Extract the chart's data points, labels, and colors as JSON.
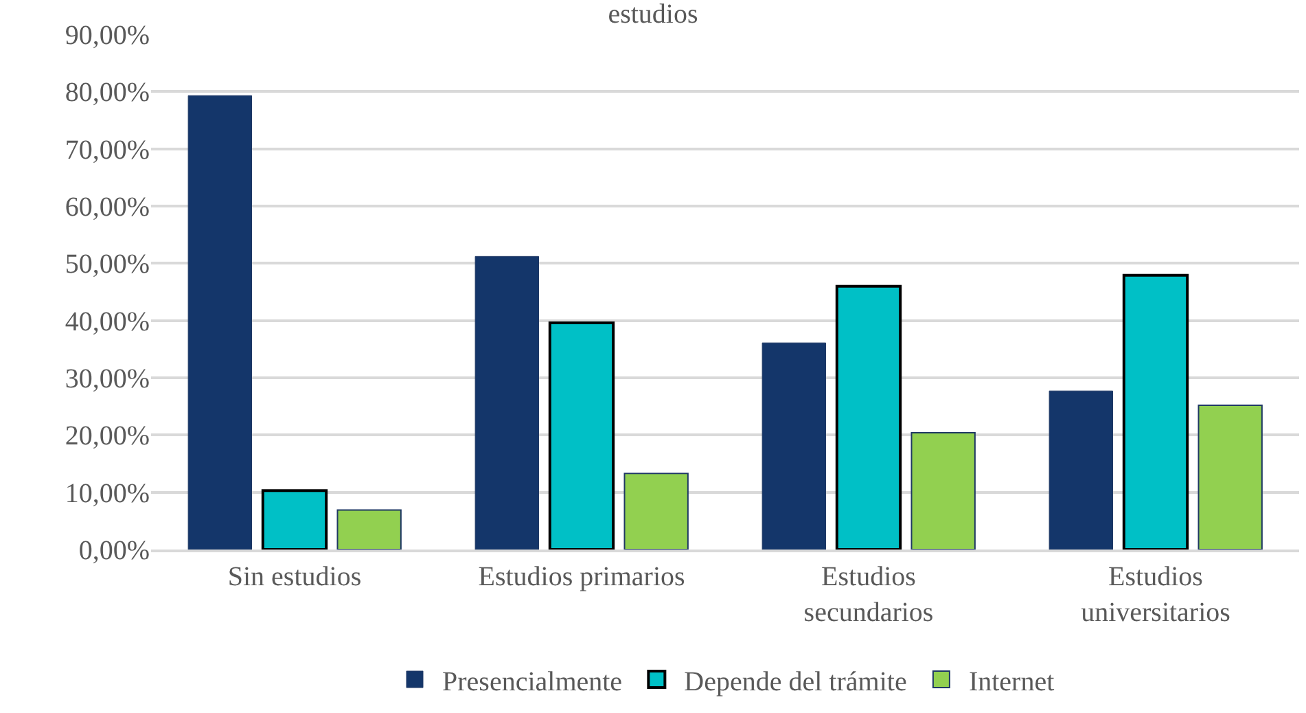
{
  "chart_data": {
    "type": "bar",
    "title": "estudios",
    "categories": [
      "Sin estudios",
      "Estudios primarios",
      "Estudios secundarios",
      "Estudios universitarios"
    ],
    "series": [
      {
        "name": "Presencialmente",
        "color": "#14366a",
        "values": [
          79.3,
          51.2,
          36.1,
          27.7
        ]
      },
      {
        "name": "Depende del trámite",
        "color": "#00c0c6",
        "values": [
          10.3,
          39.6,
          46.0,
          47.9
        ]
      },
      {
        "name": "Internet",
        "color": "#92d050",
        "values": [
          6.9,
          13.3,
          20.4,
          25.2
        ]
      }
    ],
    "ylim": [
      0,
      90
    ],
    "yticks": [
      {
        "value": 0,
        "label": "0,00%"
      },
      {
        "value": 10,
        "label": "10,00%"
      },
      {
        "value": 20,
        "label": "20,00%"
      },
      {
        "value": 30,
        "label": "30,00%"
      },
      {
        "value": 40,
        "label": "40,00%"
      },
      {
        "value": 50,
        "label": "50,00%"
      },
      {
        "value": 60,
        "label": "60,00%"
      },
      {
        "value": 70,
        "label": "70,00%"
      },
      {
        "value": 80,
        "label": "80,00%"
      },
      {
        "value": 90,
        "label": "90,00%"
      }
    ],
    "grid": "y",
    "legend": "bottom"
  }
}
